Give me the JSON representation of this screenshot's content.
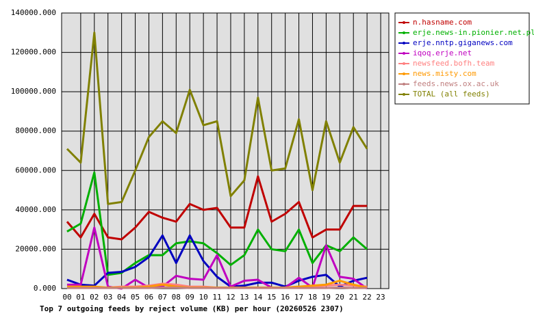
{
  "chart_data": {
    "type": "line",
    "title": "Top 7 outgoing feeds by reject volume (KB) per hour (20260526 2307)",
    "categories": [
      "00",
      "01",
      "02",
      "03",
      "04",
      "05",
      "06",
      "07",
      "08",
      "09",
      "10",
      "11",
      "12",
      "13",
      "14",
      "15",
      "16",
      "17",
      "18",
      "19",
      "20",
      "21",
      "22",
      "23"
    ],
    "ylim": [
      0,
      140000
    ],
    "yticks": [
      {
        "value": 0,
        "label": "0.000"
      },
      {
        "value": 20000,
        "label": "20000.000"
      },
      {
        "value": 40000,
        "label": "40000.000"
      },
      {
        "value": 60000,
        "label": "60000.000"
      },
      {
        "value": 80000,
        "label": "80000.000"
      },
      {
        "value": 100000,
        "label": "100000.000"
      },
      {
        "value": 120000,
        "label": "120000.000"
      },
      {
        "value": 140000,
        "label": "140000.000"
      }
    ],
    "grid": true,
    "legend": "right",
    "series": [
      {
        "name": "n.hasname.com",
        "color": "#c00000",
        "values": [
          34000,
          26000,
          38000,
          26000,
          25000,
          31000,
          39000,
          36000,
          34000,
          43000,
          40000,
          41000,
          31000,
          31000,
          57000,
          34000,
          38000,
          44000,
          26000,
          30000,
          30000,
          42000,
          42000,
          null
        ]
      },
      {
        "name": "erje.news-in.pionier.net.pl",
        "color": "#00b000",
        "values": [
          29000,
          33000,
          59000,
          7000,
          8000,
          13000,
          17000,
          17000,
          23000,
          24000,
          23000,
          18000,
          12000,
          17000,
          30000,
          20000,
          19000,
          30000,
          13000,
          22000,
          19000,
          26000,
          20000,
          null
        ]
      },
      {
        "name": "erje.nntp.giganews.com",
        "color": "#0000c0",
        "values": [
          4500,
          2000,
          1500,
          8000,
          8500,
          11000,
          16000,
          27000,
          13000,
          27000,
          14000,
          6000,
          1000,
          1500,
          3000,
          3000,
          1000,
          4000,
          6000,
          7000,
          1000,
          4000,
          5500,
          null
        ]
      },
      {
        "name": "iqoq.erje.net",
        "color": "#c000c0",
        "values": [
          2000,
          2000,
          31000,
          1000,
          0,
          4500,
          500,
          1000,
          6500,
          5000,
          4500,
          17000,
          1000,
          4000,
          4500,
          500,
          500,
          5500,
          500,
          22000,
          6000,
          5000,
          0,
          null
        ]
      },
      {
        "name": "newsfeed.bofh.team",
        "color": "#ff8080",
        "values": [
          500,
          500,
          500,
          500,
          1000,
          1000,
          1500,
          2500,
          2000,
          1000,
          1000,
          500,
          500,
          500,
          500,
          500,
          500,
          1000,
          1000,
          1500,
          2000,
          1500,
          1000,
          null
        ]
      },
      {
        "name": "news.misty.com",
        "color": "#ff9900",
        "values": [
          1000,
          1000,
          1000,
          500,
          500,
          500,
          1000,
          2000,
          1000,
          500,
          500,
          500,
          500,
          500,
          500,
          500,
          500,
          1000,
          1500,
          2000,
          4000,
          2000,
          500,
          null
        ]
      },
      {
        "name": "feeds.news.ox.ac.uk",
        "color": "#c08080",
        "values": [
          300,
          300,
          300,
          300,
          300,
          300,
          300,
          500,
          500,
          300,
          300,
          300,
          300,
          300,
          300,
          300,
          300,
          300,
          300,
          300,
          500,
          300,
          300,
          null
        ]
      },
      {
        "name": "TOTAL (all feeds)",
        "color": "#808000",
        "values": [
          71000,
          64000,
          130000,
          43000,
          44000,
          60000,
          77000,
          85000,
          79000,
          101000,
          83000,
          85000,
          47000,
          55000,
          97000,
          60000,
          61000,
          86000,
          50000,
          85000,
          64000,
          82000,
          71000,
          null
        ]
      }
    ]
  }
}
